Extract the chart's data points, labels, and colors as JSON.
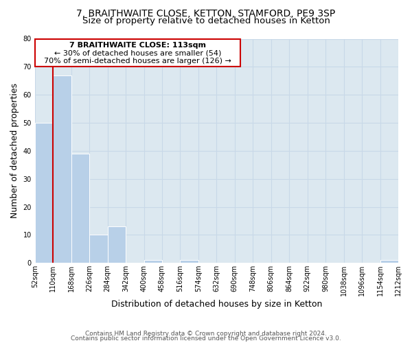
{
  "title1": "7, BRAITHWAITE CLOSE, KETTON, STAMFORD, PE9 3SP",
  "title2": "Size of property relative to detached houses in Ketton",
  "xlabel": "Distribution of detached houses by size in Ketton",
  "ylabel": "Number of detached properties",
  "bar_edges": [
    52,
    110,
    168,
    226,
    284,
    342,
    400,
    458,
    516,
    574,
    632,
    690,
    748,
    806,
    864,
    922,
    980,
    1038,
    1096,
    1154,
    1212
  ],
  "bar_heights": [
    50,
    67,
    39,
    10,
    13,
    0,
    1,
    0,
    1,
    0,
    0,
    0,
    0,
    0,
    0,
    0,
    0,
    0,
    0,
    1,
    0
  ],
  "bar_color": "#b8d0e8",
  "bar_edgecolor": "white",
  "grid_color": "#c8d8e8",
  "background_color": "#dce8f0",
  "annotation_box_edgecolor": "#cc0000",
  "annotation_line_color": "#cc0000",
  "property_line_x": 110,
  "annotation_text_line1": "7 BRAITHWAITE CLOSE: 113sqm",
  "annotation_text_line2": "← 30% of detached houses are smaller (54)",
  "annotation_text_line3": "70% of semi-detached houses are larger (126) →",
  "ylim": [
    0,
    80
  ],
  "yticks": [
    0,
    10,
    20,
    30,
    40,
    50,
    60,
    70,
    80
  ],
  "tick_labels": [
    "52sqm",
    "110sqm",
    "168sqm",
    "226sqm",
    "284sqm",
    "342sqm",
    "400sqm",
    "458sqm",
    "516sqm",
    "574sqm",
    "632sqm",
    "690sqm",
    "748sqm",
    "806sqm",
    "864sqm",
    "922sqm",
    "980sqm",
    "1038sqm",
    "1096sqm",
    "1154sqm",
    "1212sqm"
  ],
  "footer_line1": "Contains HM Land Registry data © Crown copyright and database right 2024.",
  "footer_line2": "Contains public sector information licensed under the Open Government Licence v3.0.",
  "title_fontsize": 10,
  "subtitle_fontsize": 9.5,
  "axis_label_fontsize": 9,
  "tick_fontsize": 7,
  "annotation_fontsize": 8,
  "footer_fontsize": 6.5
}
